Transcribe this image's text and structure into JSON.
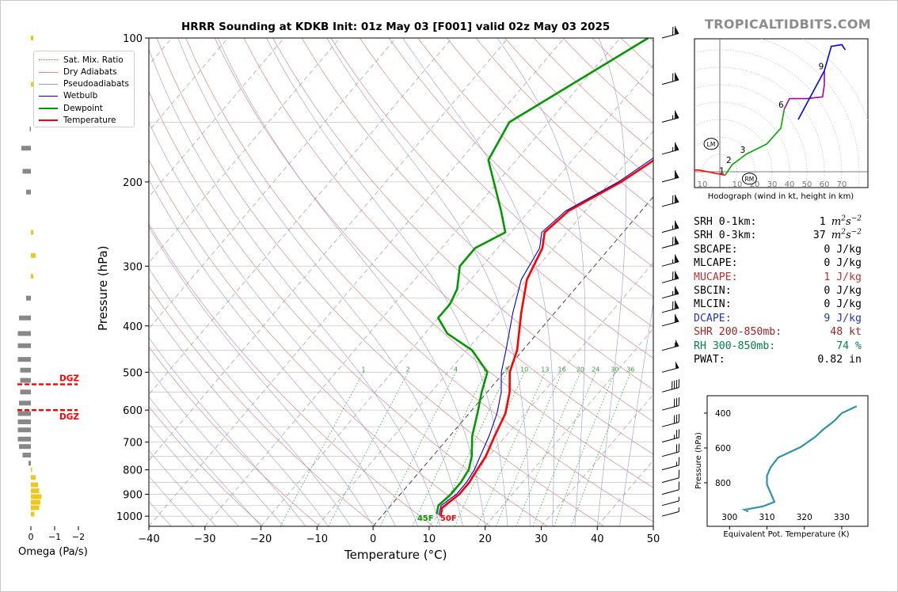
{
  "title": "HRRR Sounding at KDKB Init: 01z May 03 [F001] valid 02z May 03 2025",
  "brand": "TROPICALTIDBITS.COM",
  "colors": {
    "temperature": "#ff0000",
    "dewpoint": "#009900",
    "wetbulb": "#0000dd",
    "mucape": "#c43030",
    "dcape": "#2233cc",
    "shr": "#aa2020",
    "rh": "#00804a",
    "omega_up": "#f2c61c",
    "omega_down": "#888888",
    "dgz": "#ff0000",
    "theta_e": "#2e94a8"
  },
  "legend": [
    {
      "label": "Sat. Mix. Ratio",
      "color": "#3a9c3a",
      "style": "dotted"
    },
    {
      "label": "Dry Adiabats",
      "color": "#d88a8a",
      "style": "solid"
    },
    {
      "label": "Pseudoadiabats",
      "color": "#9a9ad6",
      "style": "solid"
    },
    {
      "label": "Wetbulb",
      "color": "#0000dd",
      "style": "solid"
    },
    {
      "label": "Dewpoint",
      "color": "#009900",
      "style": "thick"
    },
    {
      "label": "Temperature",
      "color": "#ff0000",
      "style": "thick"
    }
  ],
  "omega_label": "Omega (Pa/s)",
  "omega_ticks": [
    "0",
    "−1",
    "−2"
  ],
  "dgz_label": "DGZ",
  "surface_labels": {
    "dewpoint": "45F",
    "temperature": "50F"
  },
  "hodograph_caption": "Hodograph (wind in kt, height in km)",
  "hodo_speed_labels": [
    "10",
    "10",
    "20",
    "30",
    "40",
    "50",
    "60",
    "70"
  ],
  "hodo_height_labels": [
    "1",
    "2",
    "3",
    "6",
    "9"
  ],
  "hodo_markers": [
    "LM",
    "RM"
  ],
  "theta_panel": {
    "ylabel": "Pressure (hPa)",
    "xlabel": "Equivalent Pot. Temperature (K)",
    "xticks": [
      "300",
      "310",
      "320",
      "330"
    ],
    "yticks": [
      "400",
      "600",
      "800"
    ]
  },
  "indices": [
    {
      "label": "SRH 0-1km:",
      "value": "1",
      "unit": "m2s-2",
      "color": "#000000"
    },
    {
      "label": "SRH 0-3km:",
      "value": "37",
      "unit": "m2s-2",
      "color": "#000000"
    },
    {
      "label": "SBCAPE:",
      "value": "0 J/kg",
      "color": "#000000"
    },
    {
      "label": "MLCAPE:",
      "value": "0 J/kg",
      "color": "#000000"
    },
    {
      "label": "MUCAPE:",
      "value": "1 J/kg",
      "color": "#c43030"
    },
    {
      "label": "SBCIN:",
      "value": "0 J/kg",
      "color": "#000000"
    },
    {
      "label": "MLCIN:",
      "value": "0 J/kg",
      "color": "#000000"
    },
    {
      "label": "DCAPE:",
      "value": "9 J/kg",
      "color": "#2233cc"
    },
    {
      "label": "SHR 200-850mb:",
      "value": "48 kt",
      "color": "#aa2020"
    },
    {
      "label": "RH 300-850mb:",
      "value": "74 %",
      "color": "#00804a"
    },
    {
      "label": "PWAT:",
      "value": "0.82 in",
      "color": "#000000"
    }
  ],
  "chart_data": {
    "type": "line",
    "title": "HRRR Sounding at KDKB Init: 01z May 03 [F001] valid 02z May 03 2025",
    "xlabel": "Temperature (°C)",
    "ylabel": "Pressure (hPa)",
    "xlim": [
      -40,
      50
    ],
    "ylim": [
      1050,
      100
    ],
    "yscale": "log",
    "skew": true,
    "grid": true,
    "legend_position": "top-left",
    "x_ticks": [
      "−40",
      "−30",
      "−20",
      "−10",
      "0",
      "10",
      "20",
      "30",
      "40",
      "50"
    ],
    "y_ticks": [
      "100",
      "200",
      "300",
      "400",
      "500",
      "600",
      "700",
      "800",
      "900",
      "1000"
    ],
    "mixing_ratio_labels": [
      "1",
      "2",
      "4",
      "6",
      "8",
      "10",
      "13",
      "16",
      "20",
      "24",
      "30",
      "36"
    ],
    "series": [
      {
        "name": "Temperature",
        "points": [
          [
            5,
            100
          ],
          [
            -1,
            150
          ],
          [
            -8,
            200
          ],
          [
            -13,
            230
          ],
          [
            -14,
            255
          ],
          [
            -12,
            275
          ],
          [
            -10,
            320
          ],
          [
            -6,
            375
          ],
          [
            -1,
            450
          ],
          [
            1,
            500
          ],
          [
            4,
            550
          ],
          [
            6.5,
            610
          ],
          [
            8,
            680
          ],
          [
            9.5,
            750
          ],
          [
            10,
            800
          ],
          [
            10.5,
            850
          ],
          [
            10.5,
            900
          ],
          [
            9.5,
            960
          ],
          [
            10.5,
            1000
          ]
        ]
      },
      {
        "name": "Dewpoint",
        "points": [
          [
            -25,
            100
          ],
          [
            -37,
            150
          ],
          [
            -35,
            180
          ],
          [
            -25,
            230
          ],
          [
            -21,
            255
          ],
          [
            -24,
            275
          ],
          [
            -24,
            300
          ],
          [
            -21,
            335
          ],
          [
            -20,
            360
          ],
          [
            -20,
            385
          ],
          [
            -16,
            415
          ],
          [
            -9,
            450
          ],
          [
            -3,
            500
          ],
          [
            -1,
            550
          ],
          [
            1.5,
            610
          ],
          [
            4,
            680
          ],
          [
            7,
            750
          ],
          [
            8.5,
            800
          ],
          [
            9,
            850
          ],
          [
            9,
            900
          ],
          [
            8.5,
            950
          ],
          [
            9.5,
            990
          ]
        ]
      },
      {
        "name": "Wetbulb",
        "points": [
          [
            4,
            100
          ],
          [
            -2,
            150
          ],
          [
            -8.5,
            200
          ],
          [
            -13.5,
            230
          ],
          [
            -14.5,
            255
          ],
          [
            -12.5,
            275
          ],
          [
            -11,
            320
          ],
          [
            -7.5,
            375
          ],
          [
            -3,
            450
          ],
          [
            -0.5,
            500
          ],
          [
            2.5,
            550
          ],
          [
            5,
            610
          ],
          [
            7,
            680
          ],
          [
            8.5,
            750
          ],
          [
            9.5,
            800
          ],
          [
            10,
            850
          ],
          [
            10,
            900
          ],
          [
            9,
            950
          ],
          [
            10,
            995
          ]
        ]
      }
    ],
    "surface": {
      "dewpoint_F": 45,
      "temperature_F": 50
    },
    "dgz_levels_hpa": [
      530,
      600
    ],
    "omega": [
      {
        "p": 100,
        "w": -0.1
      },
      {
        "p": 125,
        "w": -0.3
      },
      {
        "p": 155,
        "w": 0.05
      },
      {
        "p": 170,
        "w": 0.4
      },
      {
        "p": 190,
        "w": 0.35
      },
      {
        "p": 210,
        "w": 0.2
      },
      {
        "p": 255,
        "w": -0.1
      },
      {
        "p": 285,
        "w": -0.2
      },
      {
        "p": 315,
        "w": -0.1
      },
      {
        "p": 350,
        "w": 0.2
      },
      {
        "p": 385,
        "w": 0.5
      },
      {
        "p": 415,
        "w": 0.55
      },
      {
        "p": 440,
        "w": 0.55
      },
      {
        "p": 470,
        "w": 0.55
      },
      {
        "p": 495,
        "w": 0.45
      },
      {
        "p": 520,
        "w": 0.45
      },
      {
        "p": 550,
        "w": 0.45
      },
      {
        "p": 580,
        "w": 0.5
      },
      {
        "p": 610,
        "w": 0.55
      },
      {
        "p": 635,
        "w": 0.55
      },
      {
        "p": 660,
        "w": 0.55
      },
      {
        "p": 690,
        "w": 0.55
      },
      {
        "p": 715,
        "w": 0.5
      },
      {
        "p": 745,
        "w": 0.35
      },
      {
        "p": 775,
        "w": 0.1
      },
      {
        "p": 800,
        "w": -0.05
      },
      {
        "p": 830,
        "w": -0.2
      },
      {
        "p": 860,
        "w": -0.3
      },
      {
        "p": 885,
        "w": -0.35
      },
      {
        "p": 910,
        "w": -0.45
      },
      {
        "p": 935,
        "w": -0.4
      },
      {
        "p": 960,
        "w": -0.35
      },
      {
        "p": 990,
        "w": -0.15
      }
    ],
    "wind_barbs": [
      {
        "p": 100,
        "speed_kt": 70
      },
      {
        "p": 125,
        "speed_kt": 70
      },
      {
        "p": 150,
        "speed_kt": 65
      },
      {
        "p": 175,
        "speed_kt": 65
      },
      {
        "p": 200,
        "speed_kt": 60
      },
      {
        "p": 225,
        "speed_kt": 70
      },
      {
        "p": 255,
        "speed_kt": 65
      },
      {
        "p": 275,
        "speed_kt": 70
      },
      {
        "p": 300,
        "speed_kt": 65
      },
      {
        "p": 325,
        "speed_kt": 70
      },
      {
        "p": 350,
        "speed_kt": 65
      },
      {
        "p": 375,
        "speed_kt": 70
      },
      {
        "p": 400,
        "speed_kt": 60
      },
      {
        "p": 450,
        "speed_kt": 55
      },
      {
        "p": 500,
        "speed_kt": 50
      },
      {
        "p": 550,
        "speed_kt": 40
      },
      {
        "p": 600,
        "speed_kt": 30
      },
      {
        "p": 650,
        "speed_kt": 30
      },
      {
        "p": 700,
        "speed_kt": 25
      },
      {
        "p": 750,
        "speed_kt": 20
      },
      {
        "p": 800,
        "speed_kt": 15
      },
      {
        "p": 850,
        "speed_kt": 10
      },
      {
        "p": 900,
        "speed_kt": 10
      },
      {
        "p": 950,
        "speed_kt": 5
      },
      {
        "p": 1000,
        "speed_kt": 5
      }
    ],
    "hodograph": [
      {
        "km": 0,
        "u": -19,
        "v": 1
      },
      {
        "km": 0.5,
        "u": -12,
        "v": 1
      },
      {
        "km": 1,
        "u": 3,
        "v": -2
      },
      {
        "km": 1.5,
        "u": 5,
        "v": 1
      },
      {
        "km": 2,
        "u": 7,
        "v": 4
      },
      {
        "km": 3,
        "u": 15,
        "v": 10
      },
      {
        "km": 4,
        "u": 27,
        "v": 16
      },
      {
        "km": 5,
        "u": 35,
        "v": 25
      },
      {
        "km": 6,
        "u": 37,
        "v": 36
      },
      {
        "km": 6.5,
        "u": 40,
        "v": 42
      },
      {
        "km": 7,
        "u": 50,
        "v": 42
      },
      {
        "km": 8,
        "u": 59,
        "v": 43
      },
      {
        "km": 8.5,
        "u": 60,
        "v": 50
      },
      {
        "km": 9,
        "u": 60,
        "v": 58
      },
      {
        "km": 10,
        "u": 64,
        "v": 72
      },
      {
        "km": 11,
        "u": 70,
        "v": 73
      },
      {
        "km": 12,
        "u": 72,
        "v": 70
      }
    ],
    "hodograph_dashed": {
      "from_km": 9,
      "u": 45,
      "v": 30
    },
    "theta_e": {
      "xlim": [
        294,
        337
      ],
      "ylim": [
        1050,
        300
      ],
      "points": [
        [
          305,
          965
        ],
        [
          304,
          955
        ],
        [
          309,
          935
        ],
        [
          312,
          910
        ],
        [
          311,
          860
        ],
        [
          310,
          810
        ],
        [
          310,
          760
        ],
        [
          311,
          710
        ],
        [
          313,
          655
        ],
        [
          316,
          625
        ],
        [
          319,
          595
        ],
        [
          321,
          565
        ],
        [
          323,
          535
        ],
        [
          325,
          495
        ],
        [
          328,
          445
        ],
        [
          330,
          400
        ],
        [
          334,
          360
        ]
      ]
    }
  }
}
